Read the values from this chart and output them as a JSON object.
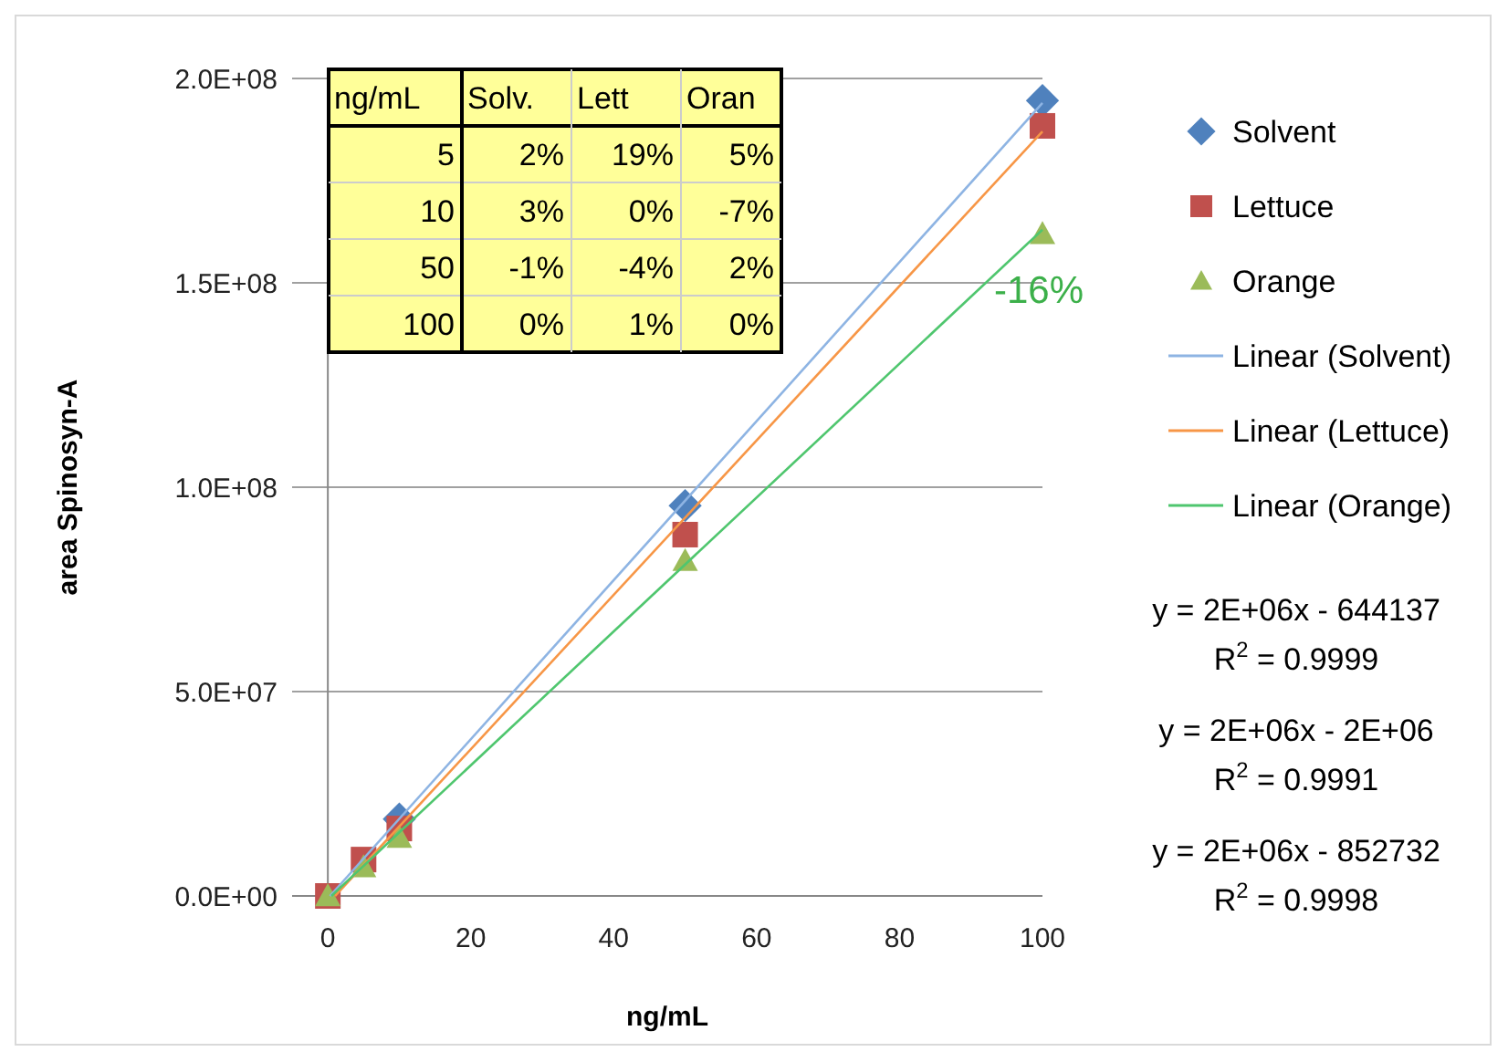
{
  "chart_data": {
    "type": "scatter",
    "xlabel": "ng/mL",
    "ylabel": "area Spinosyn-A",
    "x": [
      0,
      5,
      10,
      50,
      100
    ],
    "series": [
      {
        "name": "Solvent",
        "color": "#4f81bd",
        "marker": "diamond",
        "values": [
          null,
          null,
          18800000,
          95500000,
          194600000
        ]
      },
      {
        "name": "Lettuce",
        "color": "#c0504d",
        "marker": "square",
        "values": [
          0,
          8900000,
          16500000,
          88400000,
          188400000
        ]
      },
      {
        "name": "Orange",
        "color": "#9bbb59",
        "marker": "triangle",
        "values": [
          0,
          7100000,
          14300000,
          82000000,
          162000000
        ]
      },
      {
        "name": "Linear (Solvent)",
        "type": "line",
        "color": "#8eb4e3",
        "marker": "none",
        "x": [
          0.3,
          100
        ],
        "values": [
          0,
          194000000
        ]
      },
      {
        "name": "Linear (Lettuce)",
        "type": "line",
        "color": "#f79646",
        "marker": "none",
        "x": [
          1,
          100
        ],
        "values": [
          0,
          187000000
        ]
      },
      {
        "name": "Linear (Orange)",
        "type": "line",
        "color": "#4fc66e",
        "marker": "none",
        "x": [
          0.5,
          100
        ],
        "values": [
          0,
          163000000
        ]
      }
    ],
    "xlim": [
      -5,
      100
    ],
    "xticks": [
      0,
      20,
      40,
      60,
      80,
      100
    ],
    "ylim": [
      0,
      200000000
    ],
    "yticks": [
      {
        "value": 0,
        "label": "0.0E+00"
      },
      {
        "value": 50000000,
        "label": "5.0E+07"
      },
      {
        "value": 100000000,
        "label": "1.0E+08"
      },
      {
        "value": 150000000,
        "label": "1.5E+08"
      },
      {
        "value": 200000000,
        "label": "2.0E+08"
      }
    ],
    "grid": "y",
    "legend": "right",
    "annotations": [
      "ng/mL",
      "Solv.",
      "Lett",
      "Oran",
      "5",
      "2%",
      "19%",
      "5%",
      "10",
      "3%",
      "0%",
      "-7%",
      "50",
      "-1%",
      "-4%",
      "2%",
      "100",
      "0%",
      "1%",
      "0%",
      {
        "text": "-16%",
        "x": 100,
        "y": 162000000
      },
      "y = 2E+06x - 644137",
      "R$^{2}$ = 0.9999",
      "y = 2E+06x - 2E+06",
      "R$^{2}$ = 0.9991",
      "y = 2E+06x - 852732",
      "R$^{2}$ = 0.9998"
    ]
  }
}
